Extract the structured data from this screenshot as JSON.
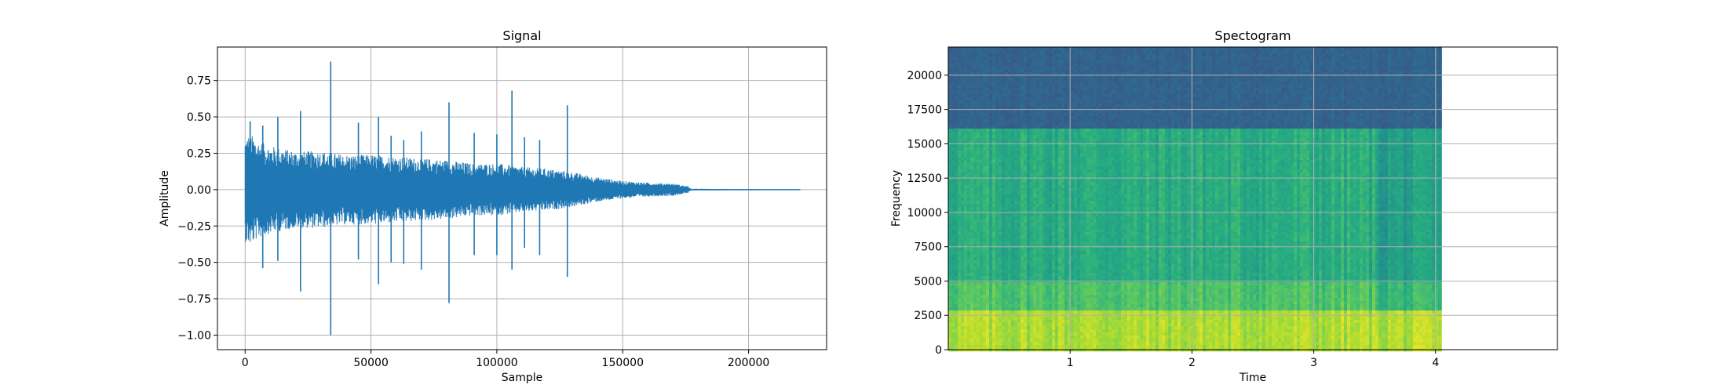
{
  "chart_data": [
    {
      "type": "line",
      "title": "Signal",
      "xlabel": "Sample",
      "ylabel": "Amplitude",
      "xlim": [
        -11000,
        231000
      ],
      "ylim": [
        -1.1,
        0.98
      ],
      "grid": true,
      "color": "#1f77b4",
      "x_ticks": [
        0,
        50000,
        100000,
        150000,
        200000
      ],
      "x_tick_labels": [
        "0",
        "50000",
        "100000",
        "150000",
        "200000"
      ],
      "y_ticks": [
        -1.0,
        -0.75,
        -0.5,
        -0.25,
        0.0,
        0.25,
        0.5,
        0.75
      ],
      "y_tick_labels": [
        "−1.00",
        "−0.75",
        "−0.50",
        "−0.25",
        "0.00",
        "0.25",
        "0.50",
        "0.75"
      ],
      "series": [
        {
          "x_range": [
            0,
            220500
          ],
          "envelope_x": [
            0,
            2000,
            5000,
            10000,
            20000,
            30000,
            40000,
            50000,
            60000,
            70000,
            80000,
            90000,
            100000,
            110000,
            120000,
            130000,
            140000,
            150000,
            160000,
            170000,
            176000,
            177000,
            220500
          ],
          "envelope_amp": [
            0.3,
            0.32,
            0.28,
            0.25,
            0.22,
            0.22,
            0.2,
            0.2,
            0.19,
            0.18,
            0.17,
            0.15,
            0.15,
            0.13,
            0.12,
            0.1,
            0.07,
            0.05,
            0.04,
            0.035,
            0.02,
            0.005,
            0.002
          ],
          "transients": [
            {
              "x": 34000,
              "max": 0.88,
              "min": -1.0
            },
            {
              "x": 81000,
              "max": 0.6,
              "min": -0.78
            },
            {
              "x": 106000,
              "max": 0.68,
              "min": -0.55
            },
            {
              "x": 128000,
              "max": 0.58,
              "min": -0.6
            },
            {
              "x": 22000,
              "max": 0.54,
              "min": -0.7
            },
            {
              "x": 53000,
              "max": 0.5,
              "min": -0.65
            },
            {
              "x": 58000,
              "max": 0.37,
              "min": -0.5
            },
            {
              "x": 70000,
              "max": 0.4,
              "min": -0.55
            },
            {
              "x": 91000,
              "max": 0.39,
              "min": -0.45
            },
            {
              "x": 117000,
              "max": 0.34,
              "min": -0.45
            },
            {
              "x": 2000,
              "max": 0.47,
              "min": -0.3
            },
            {
              "x": 7000,
              "max": 0.44,
              "min": -0.54
            },
            {
              "x": 13000,
              "max": 0.5,
              "min": -0.49
            },
            {
              "x": 45000,
              "max": 0.46,
              "min": -0.48
            },
            {
              "x": 63000,
              "max": 0.34,
              "min": -0.51
            },
            {
              "x": 100000,
              "max": 0.38,
              "min": -0.45
            },
            {
              "x": 111000,
              "max": 0.36,
              "min": -0.4
            }
          ]
        }
      ]
    },
    {
      "type": "heatmap",
      "title": "Spectogram",
      "xlabel": "Time",
      "ylabel": "Frequency",
      "xlim": [
        0,
        5.0
      ],
      "ylim": [
        0,
        22050
      ],
      "data_xmax": 4.05,
      "grid": true,
      "colormap": "viridis",
      "x_ticks": [
        1,
        2,
        3,
        4
      ],
      "x_tick_labels": [
        "1",
        "2",
        "3",
        "4"
      ],
      "y_ticks": [
        0,
        2500,
        5000,
        7500,
        10000,
        12500,
        15000,
        17500,
        20000
      ],
      "y_tick_labels": [
        "0",
        "2500",
        "5000",
        "7500",
        "10000",
        "12500",
        "15000",
        "17500",
        "20000"
      ],
      "bands": [
        {
          "f_min": 16200,
          "f_max": 22050,
          "level": 0.32
        },
        {
          "f_min": 5000,
          "f_max": 16200,
          "level": 0.62
        },
        {
          "f_min": 2800,
          "f_max": 5000,
          "level": 0.72
        },
        {
          "f_min": 0,
          "f_max": 2800,
          "level": 0.88
        }
      ]
    }
  ]
}
